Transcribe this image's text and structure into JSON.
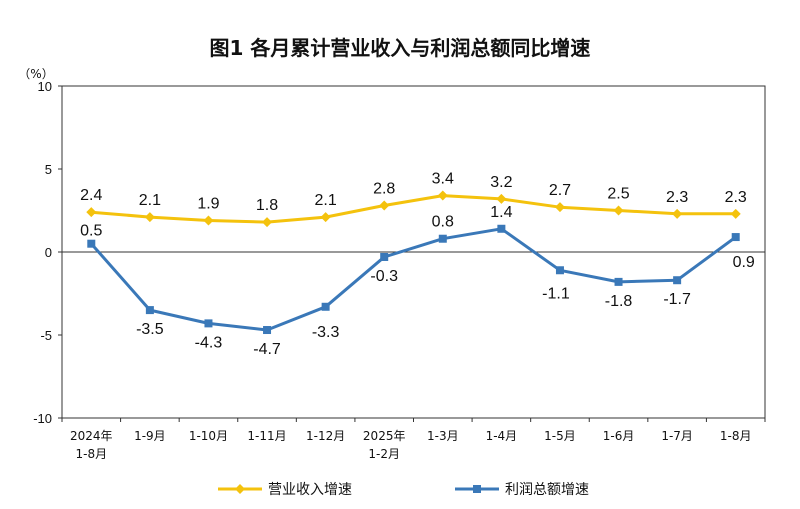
{
  "chart_data": {
    "type": "line",
    "title": "图1  各月累计营业收入与利润总额同比增速",
    "unit_label": "（%）",
    "categories": [
      [
        "2024年",
        "1-8月"
      ],
      [
        "1-9月"
      ],
      [
        "1-10月"
      ],
      [
        "1-11月"
      ],
      [
        "1-12月"
      ],
      [
        "2025年",
        "1-2月"
      ],
      [
        "1-3月"
      ],
      [
        "1-4月"
      ],
      [
        "1-5月"
      ],
      [
        "1-6月"
      ],
      [
        "1-7月"
      ],
      [
        "1-8月"
      ]
    ],
    "ylim": [
      -10,
      10
    ],
    "yticks": [
      -10,
      -5,
      0,
      5,
      10
    ],
    "grid": false,
    "legend_position": "bottom",
    "series": [
      {
        "name": "营业收入增速",
        "color": "#F4C20D",
        "marker": "diamond",
        "values": [
          2.4,
          2.1,
          1.9,
          1.8,
          2.1,
          2.8,
          3.4,
          3.2,
          2.7,
          2.5,
          2.3,
          2.3
        ],
        "labels": [
          "2.4",
          "2.1",
          "1.9",
          "1.8",
          "2.1",
          "2.8",
          "3.4",
          "3.2",
          "2.7",
          "2.5",
          "2.3",
          "2.3"
        ]
      },
      {
        "name": "利润总额增速",
        "color": "#3A78B8",
        "marker": "square",
        "values": [
          0.5,
          -3.5,
          -4.3,
          -4.7,
          -3.3,
          -0.3,
          0.8,
          1.4,
          -1.1,
          -1.8,
          -1.7,
          0.9
        ],
        "labels": [
          "0.5",
          "-3.5",
          "-4.3",
          "-4.7",
          "-3.3",
          "-0.3",
          "0.8",
          "1.4",
          "-1.1",
          "-1.8",
          "-1.7",
          "0.9"
        ]
      }
    ]
  }
}
